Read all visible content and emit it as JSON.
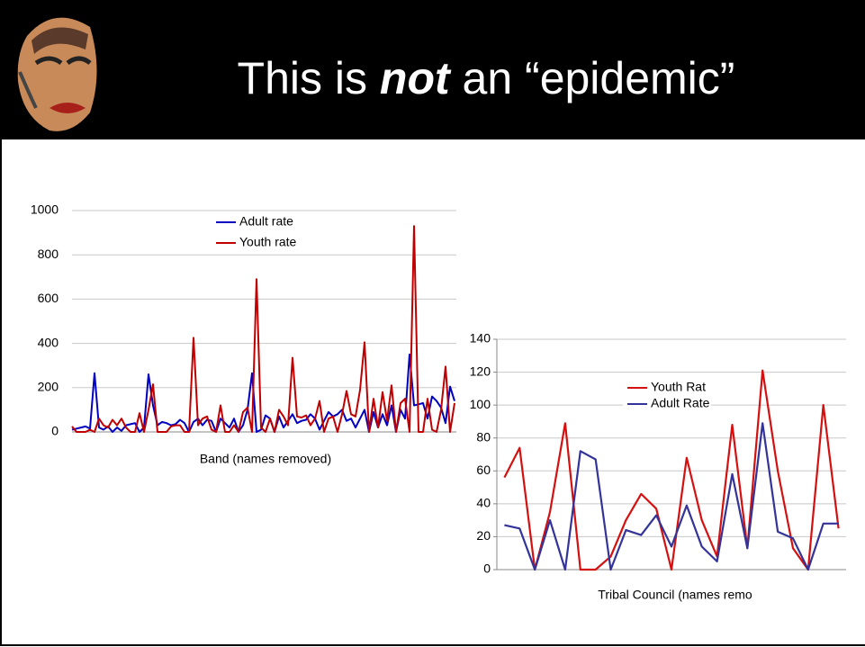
{
  "slide": {
    "title": {
      "before": "This is ",
      "emphasis": "not",
      "after": " an “epidemic”"
    }
  },
  "chart_data": [
    {
      "type": "line",
      "xlabel": "Band (names removed)",
      "ylim": [
        0,
        1000
      ],
      "yticks": [
        0,
        200,
        400,
        600,
        800,
        1000
      ],
      "grid": true,
      "series": [
        {
          "name": "Adult rate",
          "color": "#0000c0",
          "values": [
            10,
            15,
            20,
            25,
            15,
            265,
            20,
            10,
            25,
            0,
            20,
            5,
            30,
            35,
            40,
            0,
            20,
            260,
            120,
            30,
            45,
            40,
            30,
            35,
            55,
            40,
            0,
            45,
            60,
            30,
            55,
            50,
            0,
            60,
            40,
            20,
            60,
            0,
            30,
            100,
            265,
            0,
            10,
            75,
            60,
            0,
            70,
            20,
            50,
            80,
            40,
            50,
            55,
            80,
            60,
            10,
            50,
            90,
            70,
            80,
            100,
            50,
            60,
            20,
            60,
            100,
            0,
            90,
            20,
            80,
            30,
            120,
            0,
            100,
            60,
            350,
            120,
            125,
            130,
            60,
            160,
            140,
            110,
            40,
            205,
            140
          ]
        },
        {
          "name": "Youth rate",
          "color": "#c00000",
          "values": [
            25,
            0,
            0,
            0,
            10,
            0,
            60,
            30,
            20,
            55,
            30,
            60,
            20,
            0,
            0,
            85,
            0,
            100,
            215,
            0,
            0,
            0,
            25,
            30,
            30,
            0,
            0,
            425,
            30,
            60,
            70,
            10,
            0,
            120,
            0,
            0,
            30,
            0,
            90,
            110,
            0,
            690,
            20,
            0,
            60,
            0,
            100,
            70,
            30,
            335,
            70,
            65,
            75,
            30,
            60,
            140,
            0,
            60,
            70,
            0,
            80,
            185,
            80,
            70,
            190,
            405,
            0,
            150,
            20,
            180,
            50,
            210,
            0,
            130,
            150,
            0,
            930,
            0,
            0,
            150,
            10,
            0,
            100,
            295,
            0,
            130
          ]
        }
      ]
    },
    {
      "type": "line",
      "xlabel": "Tribal Council (names remo",
      "ylim": [
        0,
        140
      ],
      "yticks": [
        0,
        20,
        40,
        60,
        80,
        100,
        120,
        140
      ],
      "grid": true,
      "series": [
        {
          "name": "Youth Rat",
          "color": "#d41010",
          "values": [
            56,
            74,
            0,
            35,
            89,
            0,
            0,
            8,
            30,
            46,
            37,
            0,
            68,
            30,
            8,
            88,
            13,
            121,
            60,
            13,
            0,
            100,
            25
          ]
        },
        {
          "name": "Adult Rate",
          "color": "#333399",
          "values": [
            27,
            25,
            0,
            30,
            0,
            72,
            67,
            0,
            24,
            21,
            33,
            14,
            39,
            14,
            5,
            58,
            13,
            89,
            23,
            19,
            0,
            28,
            28
          ]
        }
      ]
    }
  ]
}
